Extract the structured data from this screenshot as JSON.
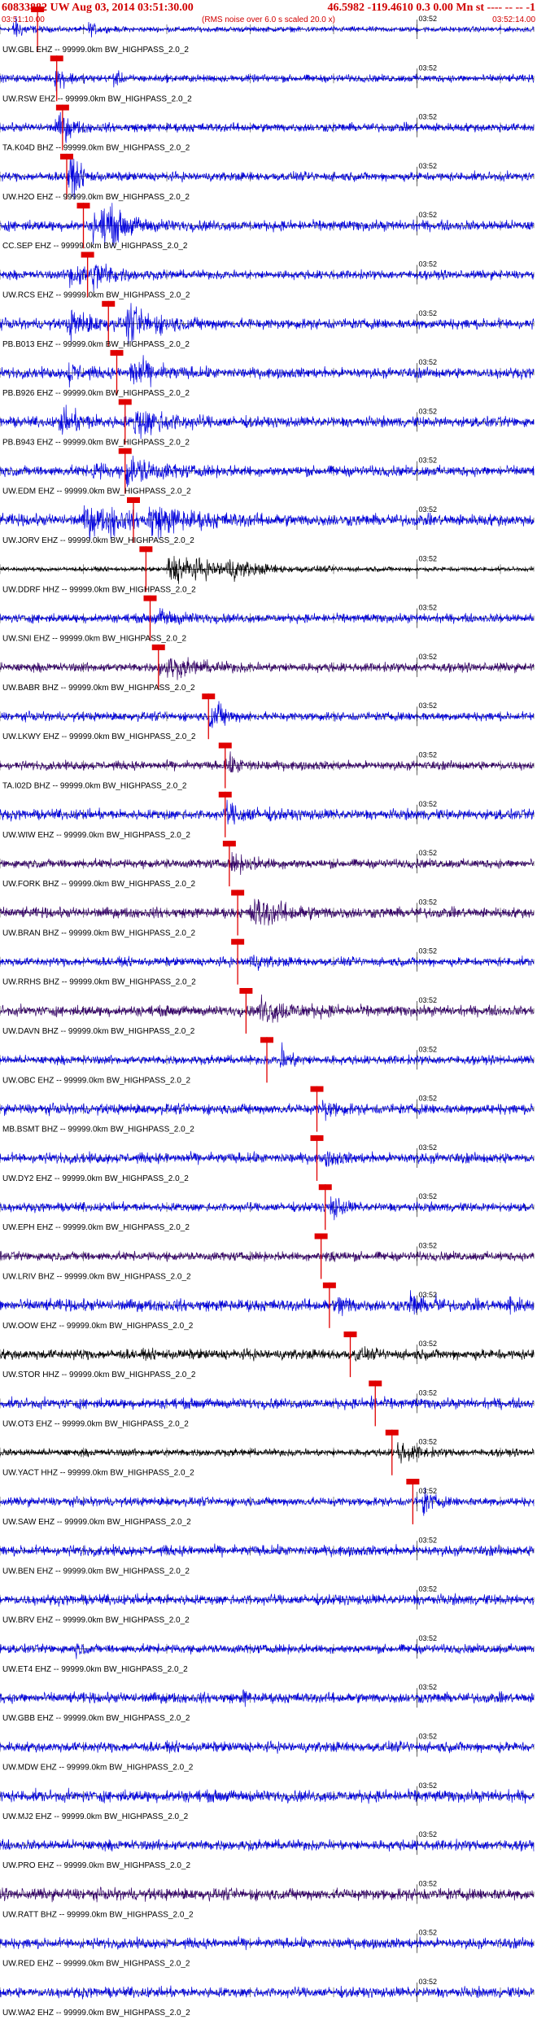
{
  "header": {
    "title_left": "60833882 UW Aug 03, 2014 03:51:30.00",
    "title_right": "46.5982 -119.4610  0.3 0.00 Mn st ---- -- -- -1",
    "start_time": "03:51:10.00",
    "noise_note": "(RMS noise over 6.0 s scaled 20.0 x)",
    "end_time": "03:52:14.00",
    "tick_label": "03:52"
  },
  "colors": {
    "title": "#d00000",
    "trace_blue": "#0000dd",
    "trace_black": "#000000",
    "trace_purple": "#330066",
    "pick": "#e00000",
    "axis": "#000000"
  },
  "chart_data": {
    "type": "line",
    "title": "60833882 UW Aug 03, 2014 03:51:30.00",
    "xlabel": "",
    "ylabel": "",
    "xlim": [
      "03:51:10.00",
      "03:52:14.00"
    ],
    "x_ticks": [
      "03:52"
    ],
    "grid": false,
    "series": [
      {
        "name": "UW.GBL EHZ -- 99999.0km BW_HIGHPASS_2.0_2",
        "color": "blue",
        "amp": 0.18,
        "bursts": [
          [
            1.5,
            0.9,
            2.5
          ],
          [
            10.5,
            0.5,
            2.0
          ]
        ],
        "pick_s": 4.5
      },
      {
        "name": "UW.RSW EHZ -- 99999.0km BW_HIGHPASS_2.0_2",
        "color": "blue",
        "amp": 0.25,
        "bursts": [
          [
            6.5,
            0.8,
            3.0
          ],
          [
            13.5,
            0.6,
            1.5
          ]
        ],
        "pick_s": 6.8
      },
      {
        "name": "TA.K04D BHZ -- 99999.0km BW_HIGHPASS_2.0_2",
        "color": "blue",
        "amp": 0.3,
        "bursts": [
          [
            7.5,
            0.5,
            3.0
          ],
          [
            6.5,
            0.4,
            2.0
          ],
          [
            7.0,
            0.7,
            1.5
          ]
        ],
        "pick_s": 7.5
      },
      {
        "name": "UW.H2O EHZ -- 99999.0km BW_HIGHPASS_2.0_2",
        "color": "blue",
        "amp": 0.3,
        "bursts": [
          [
            8.0,
            0.7,
            3.0
          ],
          [
            8.5,
            0.5,
            2.0
          ],
          [
            8.0,
            0.75,
            2.0
          ]
        ],
        "pick_s": 8.0
      },
      {
        "name": "CC.SEP EHZ -- 99999.0km BW_HIGHPASS_2.0_2",
        "color": "blue",
        "amp": 0.35,
        "bursts": [
          [
            12.5,
            1.0,
            6.0
          ],
          [
            12.0,
            0.8,
            2.0
          ],
          [
            11.0,
            0.9,
            3.0
          ]
        ],
        "pick_s": 10.0
      },
      {
        "name": "UW.RCS EHZ -- 99999.0km BW_HIGHPASS_2.0_2",
        "color": "blue",
        "amp": 0.3,
        "bursts": [
          [
            11.0,
            0.9,
            4.0
          ],
          [
            8.0,
            0.8,
            6.0
          ]
        ],
        "pick_s": 10.5
      },
      {
        "name": "PB.B013 EHZ -- 99999.0km BW_HIGHPASS_2.0_2",
        "color": "blue",
        "amp": 0.35,
        "bursts": [
          [
            15.0,
            1.0,
            8.0
          ],
          [
            8.0,
            0.9,
            6.0
          ]
        ],
        "pick_s": 13.0
      },
      {
        "name": "PB.B926 EHZ -- 99999.0km BW_HIGHPASS_2.0_2",
        "color": "blue",
        "amp": 0.35,
        "bursts": [
          [
            15.5,
            1.0,
            6.0
          ],
          [
            8.0,
            0.8,
            3.0
          ]
        ],
        "pick_s": 14.0
      },
      {
        "name": "PB.B943 EHZ -- 99999.0km BW_HIGHPASS_2.0_2",
        "color": "blue",
        "amp": 0.35,
        "bursts": [
          [
            16.0,
            1.0,
            8.0
          ],
          [
            7.0,
            0.8,
            6.0
          ]
        ],
        "pick_s": 15.0
      },
      {
        "name": "UW.EDM EHZ -- 99999.0km BW_HIGHPASS_2.0_2",
        "color": "blue",
        "amp": 0.35,
        "bursts": [
          [
            15.0,
            1.0,
            7.0
          ],
          [
            11.0,
            0.6,
            3.0
          ]
        ],
        "pick_s": 15.0
      },
      {
        "name": "UW.JORV EHZ -- 99999.0km BW_HIGHPASS_2.0_2",
        "color": "blue",
        "amp": 0.4,
        "bursts": [
          [
            17.5,
            1.0,
            10.0
          ],
          [
            10.0,
            1.0,
            6.0
          ],
          [
            13.0,
            0.8,
            3.0
          ]
        ],
        "pick_s": 16.0
      },
      {
        "name": "UW.DDRF HHZ -- 99999.0km BW_HIGHPASS_2.0_2",
        "color": "black",
        "amp": 0.15,
        "bursts": [
          [
            20.0,
            1.0,
            14.0
          ],
          [
            27.0,
            0.5,
            5.0
          ]
        ],
        "pick_s": 17.5
      },
      {
        "name": "UW.SNI EHZ -- 99999.0km BW_HIGHPASS_2.0_2",
        "color": "blue",
        "amp": 0.3,
        "bursts": [
          [
            19.0,
            0.4,
            6.0
          ],
          [
            18.0,
            0.2,
            2.0
          ]
        ],
        "pick_s": 18.0
      },
      {
        "name": "UW.BABR BHZ -- 99999.0km BW_HIGHPASS_2.0_2",
        "color": "purple",
        "amp": 0.3,
        "bursts": [
          [
            19.0,
            0.4,
            10.0
          ],
          [
            20.0,
            0.3,
            6.0
          ]
        ],
        "pick_s": 19.0
      },
      {
        "name": "UW.LKWY EHZ -- 99999.0km BW_HIGHPASS_2.0_2",
        "color": "blue",
        "amp": 0.3,
        "bursts": [
          [
            25.0,
            1.0,
            3.0
          ],
          [
            26.0,
            0.4,
            2.0
          ]
        ],
        "pick_s": 25.0
      },
      {
        "name": "TA.I02D BHZ -- 99999.0km BW_HIGHPASS_2.0_2",
        "color": "purple",
        "amp": 0.3,
        "bursts": [
          [
            27.0,
            0.6,
            4.0
          ]
        ],
        "pick_s": 27.0
      },
      {
        "name": "UW.WIW EHZ -- 99999.0km BW_HIGHPASS_2.0_2",
        "color": "blue",
        "amp": 0.35,
        "bursts": [
          [
            27.0,
            0.6,
            6.0
          ]
        ],
        "pick_s": 27.0
      },
      {
        "name": "UW.FORK BHZ -- 99999.0km BW_HIGHPASS_2.0_2",
        "color": "purple",
        "amp": 0.3,
        "bursts": [
          [
            27.5,
            0.5,
            6.0
          ]
        ],
        "pick_s": 27.5
      },
      {
        "name": "UW.BRAN BHZ -- 99999.0km BW_HIGHPASS_2.0_2",
        "color": "purple",
        "amp": 0.35,
        "bursts": [
          [
            30.0,
            1.0,
            8.0
          ]
        ],
        "pick_s": 28.5
      },
      {
        "name": "UW.RRHS BHZ -- 99999.0km BW_HIGHPASS_2.0_2",
        "color": "blue",
        "amp": 0.3,
        "bursts": [
          [
            29.5,
            0.5,
            4.0
          ]
        ],
        "pick_s": 28.5
      },
      {
        "name": "UW.DAVN BHZ -- 99999.0km BW_HIGHPASS_2.0_2",
        "color": "purple",
        "amp": 0.35,
        "bursts": [
          [
            31.0,
            0.8,
            8.0
          ]
        ],
        "pick_s": 29.5
      },
      {
        "name": "UW.OBC EHZ -- 99999.0km BW_HIGHPASS_2.0_2",
        "color": "blue",
        "amp": 0.3,
        "bursts": [
          [
            33.5,
            1.0,
            2.5
          ]
        ],
        "pick_s": 32.0
      },
      {
        "name": "MB.BSMT BHZ -- 99999.0km BW_HIGHPASS_2.0_2",
        "color": "blue",
        "amp": 0.35,
        "bursts": [
          [
            38.5,
            0.7,
            3.0
          ]
        ],
        "pick_s": 38.0
      },
      {
        "name": "UW.DY2 EHZ -- 99999.0km BW_HIGHPASS_2.0_2",
        "color": "blue",
        "amp": 0.35,
        "bursts": [
          [
            39.0,
            0.4,
            3.0
          ]
        ],
        "pick_s": 38.0
      },
      {
        "name": "UW.EPH EHZ -- 99999.0km BW_HIGHPASS_2.0_2",
        "color": "blue",
        "amp": 0.3,
        "bursts": [
          [
            39.5,
            1.0,
            2.5
          ]
        ],
        "pick_s": 39.0
      },
      {
        "name": "UW.LRIV BHZ -- 99999.0km BW_HIGHPASS_2.0_2",
        "color": "purple",
        "amp": 0.3,
        "bursts": [
          [
            39.0,
            0.3,
            3.0
          ]
        ],
        "pick_s": 38.5
      },
      {
        "name": "UW.OOW EHZ -- 99999.0km BW_HIGHPASS_2.0_2",
        "color": "blue",
        "amp": 0.4,
        "bursts": [
          [
            40.5,
            1.0,
            2.0
          ],
          [
            49.0,
            1.0,
            2.0
          ],
          [
            52.0,
            0.8,
            1.0
          ],
          [
            61.0,
            0.7,
            2.0
          ]
        ],
        "pick_s": 39.5
      },
      {
        "name": "UW.STOR HHZ -- 99999.0km BW_HIGHPASS_2.0_2",
        "color": "black",
        "amp": 0.35,
        "bursts": [
          [
            42.5,
            0.4,
            2.0
          ]
        ],
        "pick_s": 42.0
      },
      {
        "name": "UW.OT3 EHZ -- 99999.0km BW_HIGHPASS_2.0_2",
        "color": "blue",
        "amp": 0.35,
        "bursts": [
          [
            44.0,
            0.4,
            2.0
          ]
        ],
        "pick_s": 45.0
      },
      {
        "name": "UW.YACT HHZ -- 99999.0km BW_HIGHPASS_2.0_2",
        "color": "black",
        "amp": 0.25,
        "bursts": [
          [
            47.5,
            0.8,
            4.0
          ]
        ],
        "pick_s": 47.0
      },
      {
        "name": "UW.SAW EHZ -- 99999.0km BW_HIGHPASS_2.0_2",
        "color": "blue",
        "amp": 0.3,
        "bursts": [
          [
            50.5,
            1.0,
            2.5
          ]
        ],
        "pick_s": 49.5
      },
      {
        "name": "UW.BEN EHZ -- 99999.0km BW_HIGHPASS_2.0_2",
        "color": "blue",
        "amp": 0.35,
        "bursts": [],
        "pick_s": null
      },
      {
        "name": "UW.BRV EHZ -- 99999.0km BW_HIGHPASS_2.0_2",
        "color": "blue",
        "amp": 0.35,
        "bursts": [],
        "pick_s": null
      },
      {
        "name": "UW.ET4 EHZ -- 99999.0km BW_HIGHPASS_2.0_2",
        "color": "blue",
        "amp": 0.3,
        "bursts": [
          [
            9.0,
            0.4,
            1.5
          ]
        ],
        "pick_s": null
      },
      {
        "name": "UW.GBB EHZ -- 99999.0km BW_HIGHPASS_2.0_2",
        "color": "blue",
        "amp": 0.35,
        "bursts": [
          [
            29.0,
            0.6,
            1.0
          ]
        ],
        "pick_s": null
      },
      {
        "name": "UW.MDW EHZ -- 99999.0km BW_HIGHPASS_2.0_2",
        "color": "blue",
        "amp": 0.35,
        "bursts": [],
        "pick_s": null
      },
      {
        "name": "UW.MJ2 EHZ -- 99999.0km BW_HIGHPASS_2.0_2",
        "color": "blue",
        "amp": 0.4,
        "bursts": [],
        "pick_s": null
      },
      {
        "name": "UW.PRO EHZ -- 99999.0km BW_HIGHPASS_2.0_2",
        "color": "blue",
        "amp": 0.35,
        "bursts": [],
        "pick_s": null
      },
      {
        "name": "UW.RATT BHZ -- 99999.0km BW_HIGHPASS_2.0_2",
        "color": "purple",
        "amp": 0.4,
        "bursts": [],
        "pick_s": null
      },
      {
        "name": "UW.RED EHZ -- 99999.0km BW_HIGHPASS_2.0_2",
        "color": "blue",
        "amp": 0.35,
        "bursts": [],
        "pick_s": null
      },
      {
        "name": "UW.WA2 EHZ -- 99999.0km BW_HIGHPASS_2.0_2",
        "color": "blue",
        "amp": 0.35,
        "bursts": [],
        "pick_s": null
      }
    ]
  }
}
